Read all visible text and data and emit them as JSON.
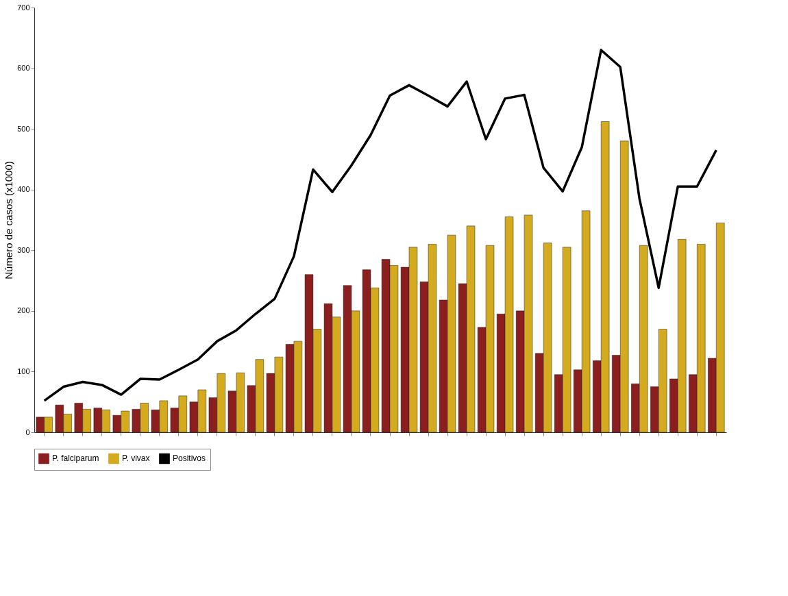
{
  "chart_data": {
    "type": "bar",
    "ylabel": "Número de casos (x1000)",
    "categories": [
      null,
      null,
      null,
      null,
      null,
      null,
      null,
      null,
      null,
      null,
      null,
      null,
      null,
      null,
      null,
      null,
      null,
      null,
      null,
      null,
      null,
      null,
      null,
      null,
      null,
      null,
      null,
      null,
      null,
      null,
      null,
      null,
      null,
      null,
      null,
      null
    ],
    "series": [
      {
        "name": "P. falciparum",
        "color": "#8b1e1e",
        "values": [
          25,
          45,
          48,
          40,
          28,
          38,
          37,
          40,
          50,
          57,
          68,
          77,
          97,
          145,
          260,
          212,
          242,
          268,
          285,
          272,
          248,
          218,
          245,
          173,
          195,
          200,
          130,
          95,
          103,
          118,
          127,
          80,
          75,
          88,
          95,
          122
        ]
      },
      {
        "name": "P. vivax",
        "color": "#d4aa1e",
        "values": [
          25,
          30,
          38,
          37,
          35,
          48,
          52,
          60,
          70,
          97,
          98,
          120,
          124,
          150,
          170,
          190,
          200,
          238,
          275,
          305,
          310,
          325,
          340,
          308,
          355,
          358,
          312,
          305,
          365,
          512,
          480,
          308,
          170,
          318,
          310,
          345
        ]
      },
      {
        "name": "Positivos",
        "type": "line",
        "color": "#000000",
        "values": [
          52,
          75,
          83,
          78,
          62,
          88,
          87,
          103,
          120,
          150,
          168,
          195,
          220,
          290,
          433,
          396,
          440,
          490,
          555,
          572,
          555,
          537,
          578,
          483,
          550,
          556,
          436,
          397,
          470,
          630,
          602,
          385,
          238,
          405,
          405,
          465
        ]
      }
    ],
    "ylim": [
      0,
      700
    ],
    "yticks": [
      0,
      100,
      200,
      300,
      400,
      500,
      600,
      700
    ],
    "grid": false,
    "legend": "bottom",
    "tick_labels": "y",
    "marker": "none",
    "line_style": "solid"
  }
}
